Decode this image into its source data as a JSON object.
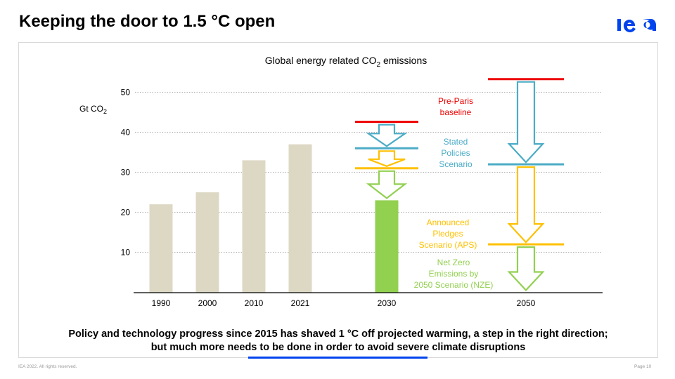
{
  "slide": {
    "title": "Keeping the door to 1.5 °C open",
    "logo_text": "iea",
    "takeaway_line1": "Policy and technology progress since 2015 has shaved 1 °C off projected warming, a step in the right direction;",
    "takeaway_line2": "but much more needs to be done in order to avoid severe climate disruptions",
    "footer_left": "IEA 2022. All rights reserved.",
    "footer_right": "Page 10"
  },
  "colors": {
    "brand": "#0044ee",
    "historical_bar": "#ddd8c4",
    "pre_paris": "#ee0000",
    "steps": "#4bacc6",
    "aps": "#ffc000",
    "nze": "#92d050"
  },
  "chart_data": {
    "type": "bar",
    "title": "Global energy related CO",
    "title_sub": "2",
    "title_suffix": " emissions",
    "ylabel": "Gt CO",
    "ylabel_sub": "2",
    "ylim": [
      0,
      55
    ],
    "yticks": [
      10,
      20,
      30,
      40,
      50
    ],
    "grid": true,
    "historical": {
      "categories": [
        "1990",
        "2000",
        "2010",
        "2021"
      ],
      "values": [
        22,
        25,
        33,
        37
      ]
    },
    "projections": [
      {
        "year": "2030",
        "pre_paris": 42.6,
        "steps": 36,
        "aps": 31,
        "nze": 23,
        "nze_shown_as": "bar"
      },
      {
        "year": "2050",
        "pre_paris": 53.3,
        "steps": 32,
        "aps": 12,
        "nze": 0,
        "nze_shown_as": "arrow"
      }
    ],
    "annotations": {
      "pre_paris": [
        "Pre-Paris",
        "baseline"
      ],
      "steps": [
        "Stated",
        "Policies",
        "Scenario"
      ],
      "aps": [
        "Announced",
        "Pledges",
        "Scenario (APS)"
      ],
      "nze": [
        "Net Zero",
        "Emissions by",
        "2050 Scenario (NZE)"
      ]
    }
  }
}
